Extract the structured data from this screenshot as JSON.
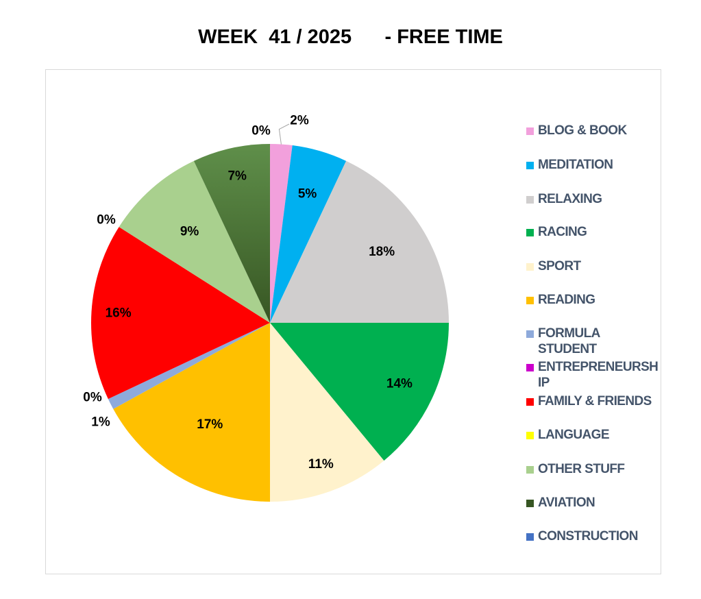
{
  "chart_data": {
    "type": "pie",
    "title": "WEEK  41 / 2025      - FREE TIME",
    "legend_position": "right",
    "slices": [
      {
        "label": "BLOG & BOOK",
        "value": 2,
        "display": "2%",
        "color": "#f2a0dc"
      },
      {
        "label": "MEDITATION",
        "value": 5,
        "display": "5%",
        "color": "#00b0f0"
      },
      {
        "label": "RELAXING",
        "value": 18,
        "display": "18%",
        "color": "#d0cece"
      },
      {
        "label": "RACING",
        "value": 14,
        "display": "14%",
        "color": "#00b050"
      },
      {
        "label": "SPORT",
        "value": 11,
        "display": "11%",
        "color": "#fff2cc"
      },
      {
        "label": "READING",
        "value": 17,
        "display": "17%",
        "color": "#ffc000"
      },
      {
        "label": "FORMULA STUDENT",
        "value": 1,
        "display": "1%",
        "color": "#8eaadb"
      },
      {
        "label": "ENTREPRENEURSHIP",
        "value": 0,
        "display": "0%",
        "color": "#cc00cc"
      },
      {
        "label": "FAMILY & FRIENDS",
        "value": 16,
        "display": "16%",
        "color": "#ff0000"
      },
      {
        "label": "LANGUAGE",
        "value": 0,
        "display": "0%",
        "color": "#ffff00"
      },
      {
        "label": "OTHER STUFF",
        "value": 9,
        "display": "9%",
        "color": "#a9d08e"
      },
      {
        "label": "AVIATION",
        "value": 7,
        "display": "7%",
        "color": "#375623"
      },
      {
        "label": "CONSTRUCTION",
        "value": 0,
        "display": "0%",
        "color": "#4472c4"
      }
    ]
  },
  "legend_lines": [
    [
      "BLOG & BOOK"
    ],
    [
      "MEDITATION"
    ],
    [
      "RELAXING"
    ],
    [
      "RACING"
    ],
    [
      "SPORT"
    ],
    [
      "READING"
    ],
    [
      "FORMULA",
      "STUDENT"
    ],
    [
      "ENTREPRENEURSH",
      "IP"
    ],
    [
      "FAMILY & FRIENDS"
    ],
    [
      "LANGUAGE"
    ],
    [
      "OTHER STUFF"
    ],
    [
      "AVIATION"
    ],
    [
      "CONSTRUCTION"
    ]
  ]
}
